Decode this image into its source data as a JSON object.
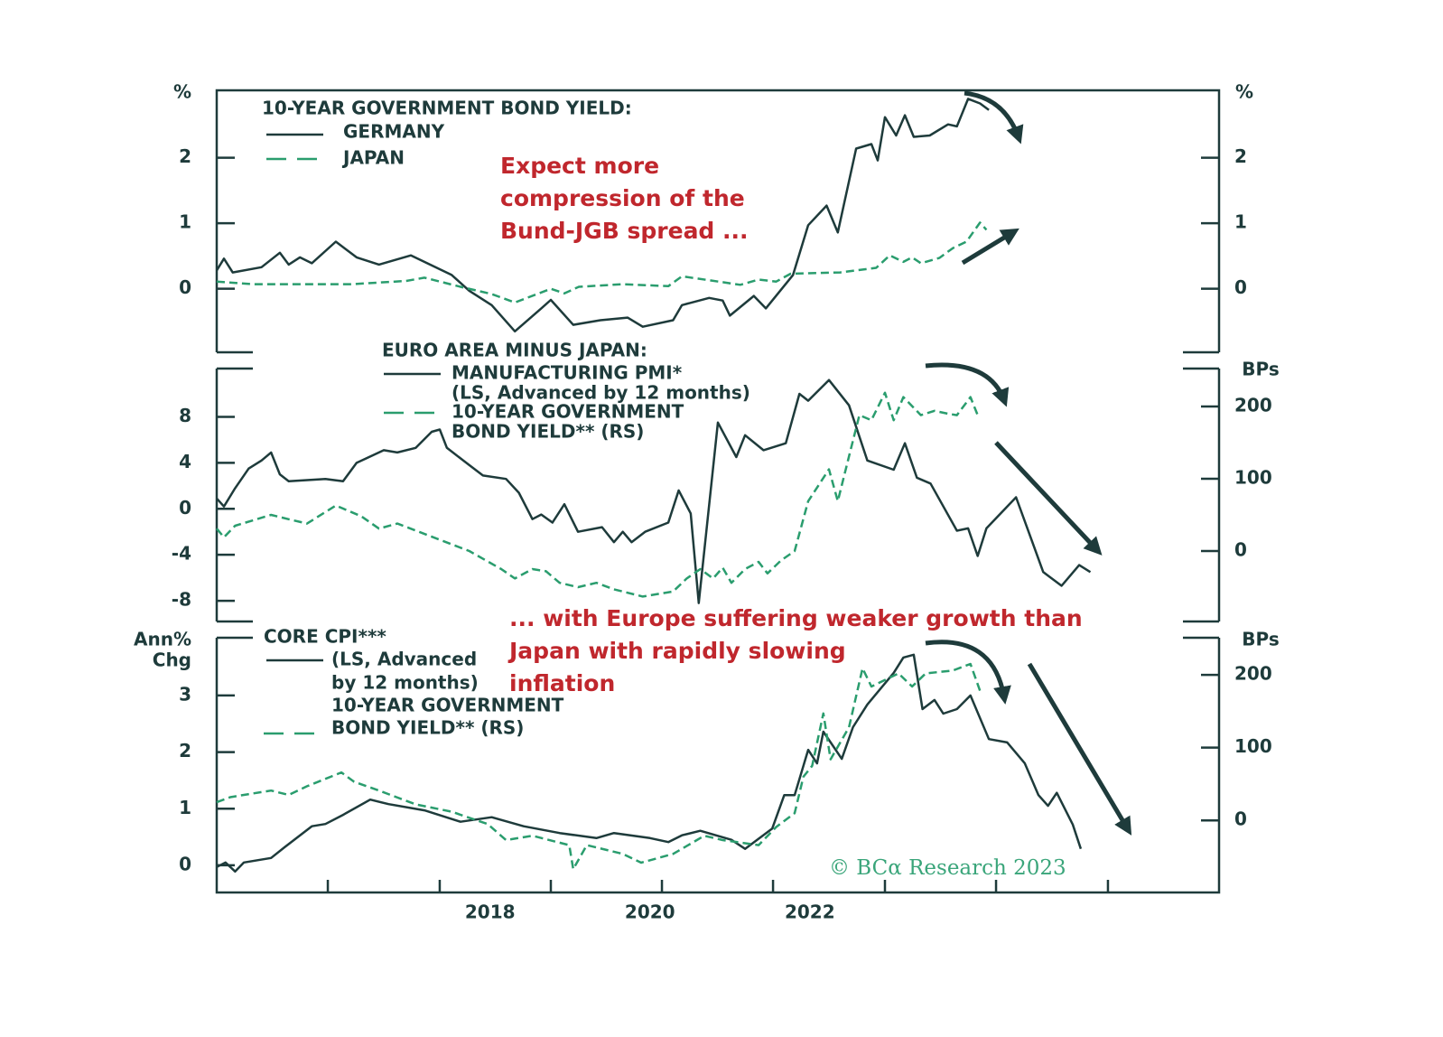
{
  "chart_data": [
    {
      "type": "line",
      "title": "10-YEAR GOVERNMENT BOND YIELD:",
      "ylabel": "%",
      "y2label": "%",
      "ylim": [
        -0.97,
        3.03
      ],
      "yticks": [
        0,
        1,
        2
      ],
      "y2lim": [
        -0.97,
        3.03
      ],
      "y2ticks": [
        0,
        1,
        2
      ],
      "annotation": [
        "Expect more",
        "compression of the",
        "Bund-JGB spread ..."
      ],
      "series": [
        {
          "name": [
            "GERMANY"
          ],
          "color": "#1e3b3b",
          "dash": false,
          "x": [
            2014.58,
            2014.67,
            2014.78,
            2015.14,
            2015.37,
            2015.48,
            2015.62,
            2015.77,
            2016.07,
            2016.33,
            2016.61,
            2017.01,
            2017.52,
            2017.74,
            2018.02,
            2018.31,
            2018.64,
            2018.76,
            2019.04,
            2019.38,
            2019.72,
            2019.91,
            2020.29,
            2020.4,
            2020.74,
            2020.91,
            2021.0,
            2021.3,
            2021.45,
            2021.79,
            2021.98,
            2022.21,
            2022.35,
            2022.58,
            2022.77,
            2022.85,
            2022.94,
            2023.08,
            2023.19,
            2023.3,
            2023.5,
            2023.73,
            2023.84,
            2023.98,
            2024.13,
            2024.24
          ],
          "values": [
            0.28,
            0.46,
            0.25,
            0.33,
            0.55,
            0.37,
            0.48,
            0.39,
            0.72,
            0.48,
            0.37,
            0.51,
            0.21,
            -0.03,
            -0.25,
            -0.65,
            -0.3,
            -0.17,
            -0.55,
            -0.48,
            -0.44,
            -0.58,
            -0.48,
            -0.25,
            -0.14,
            -0.18,
            -0.41,
            -0.11,
            -0.3,
            0.21,
            0.97,
            1.27,
            0.86,
            2.14,
            2.21,
            1.96,
            2.62,
            2.34,
            2.65,
            2.32,
            2.34,
            2.51,
            2.48,
            2.9,
            2.83,
            2.73
          ]
        },
        {
          "name": [
            "JAPAN"
          ],
          "color": "#2a9d6e",
          "dash": true,
          "x": [
            2014.58,
            2015.03,
            2015.6,
            2016.27,
            2016.95,
            2017.18,
            2017.63,
            2018.02,
            2018.31,
            2018.76,
            2018.93,
            2019.11,
            2019.66,
            2020.23,
            2020.4,
            2020.91,
            2021.13,
            2021.36,
            2021.58,
            2021.76,
            2022.38,
            2022.83,
            2023.0,
            2023.17,
            2023.28,
            2023.39,
            2023.62,
            2023.79,
            2023.96,
            2024.13,
            2024.21
          ],
          "values": [
            0.11,
            0.07,
            0.07,
            0.07,
            0.12,
            0.17,
            0.03,
            -0.08,
            -0.21,
            0.0,
            -0.07,
            0.03,
            0.07,
            0.04,
            0.19,
            0.1,
            0.06,
            0.14,
            0.11,
            0.23,
            0.25,
            0.32,
            0.51,
            0.41,
            0.48,
            0.39,
            0.47,
            0.62,
            0.72,
            1.01,
            0.9
          ]
        }
      ]
    },
    {
      "type": "line",
      "title": "EURO AREA MINUS JAPAN:",
      "y2label": "BPs",
      "ylim": [
        -9.8,
        12.2
      ],
      "yticks": [
        8,
        4,
        0,
        -4,
        -8
      ],
      "y2lim": [
        -97.5,
        252.5
      ],
      "y2ticks": [
        200,
        100,
        0
      ],
      "series": [
        {
          "name": [
            "MANUFACTURING PMI*",
            "(LS, Advanced by 12 months)"
          ],
          "color": "#1e3b3b",
          "dash": false,
          "x": [
            2014.58,
            2014.67,
            2014.81,
            2014.98,
            2015.14,
            2015.26,
            2015.37,
            2015.48,
            2015.94,
            2016.16,
            2016.33,
            2016.67,
            2016.84,
            2017.07,
            2017.27,
            2017.37,
            2017.46,
            2017.74,
            2017.91,
            2018.2,
            2018.36,
            2018.53,
            2018.64,
            2018.78,
            2018.93,
            2019.1,
            2019.4,
            2019.55,
            2019.66,
            2019.77,
            2019.94,
            2020.23,
            2020.36,
            2020.51,
            2020.61,
            2020.85,
            2021.08,
            2021.19,
            2021.42,
            2021.7,
            2021.87,
            2021.98,
            2022.24,
            2022.49,
            2022.72,
            2023.05,
            2023.19,
            2023.34,
            2023.51,
            2023.84,
            2023.98,
            2024.1,
            2024.21,
            2024.58,
            2024.92,
            2025.15,
            2025.37,
            2025.51
          ],
          "values": [
            0.9,
            0.2,
            1.8,
            3.5,
            4.2,
            4.9,
            3.0,
            2.4,
            2.6,
            2.4,
            4.0,
            5.1,
            4.9,
            5.3,
            6.7,
            6.9,
            5.3,
            3.8,
            2.9,
            2.6,
            1.4,
            -0.9,
            -0.5,
            -1.2,
            0.4,
            -2.0,
            -1.6,
            -2.9,
            -2.0,
            -2.9,
            -2.0,
            -1.2,
            1.6,
            -0.4,
            -8.2,
            7.5,
            4.5,
            6.4,
            5.1,
            5.7,
            10.0,
            9.4,
            11.2,
            9.0,
            4.2,
            3.4,
            5.7,
            2.7,
            2.2,
            -1.9,
            -1.7,
            -4.1,
            -1.7,
            1.0,
            -5.5,
            -6.7,
            -4.9,
            -5.5
          ]
        },
        {
          "name": [
            "10-YEAR GOVERNMENT",
            "BOND YIELD** (RS)"
          ],
          "color": "#2a9d6e",
          "dash": true,
          "axis": "y2",
          "x": [
            2014.58,
            2014.67,
            2014.81,
            2015.26,
            2015.48,
            2015.71,
            2016.07,
            2016.39,
            2016.61,
            2016.84,
            2017.29,
            2017.74,
            2018.14,
            2018.31,
            2018.53,
            2018.7,
            2018.87,
            2019.1,
            2019.33,
            2019.55,
            2019.91,
            2020.29,
            2020.46,
            2020.63,
            2020.79,
            2020.91,
            2021.02,
            2021.19,
            2021.36,
            2021.47,
            2021.64,
            2021.81,
            2021.98,
            2022.24,
            2022.35,
            2022.49,
            2022.62,
            2022.77,
            2022.94,
            2023.05,
            2023.17,
            2023.39,
            2023.56,
            2023.73,
            2023.84,
            2024.01,
            2024.1
          ],
          "values": [
            31,
            19,
            35,
            50,
            44,
            38,
            63,
            48,
            31,
            38,
            19,
            0,
            -25,
            -38,
            -25,
            -28,
            -44,
            -50,
            -44,
            -53,
            -63,
            -56,
            -38,
            -25,
            -38,
            -23,
            -44,
            -25,
            -15,
            -31,
            -13,
            0,
            69,
            113,
            69,
            131,
            188,
            181,
            219,
            181,
            213,
            188,
            194,
            190,
            188,
            213,
            188
          ]
        }
      ]
    },
    {
      "type": "line",
      "ylabel": [
        "Ann%",
        "Chg"
      ],
      "y2label": "BPs",
      "ylim": [
        -0.48,
        4.02
      ],
      "yticks": [
        0,
        1,
        2,
        3
      ],
      "y2lim": [
        -99,
        251
      ],
      "y2ticks": [
        200,
        100,
        0
      ],
      "xlim": [
        2014.58,
        2027.12
      ],
      "xticks": [
        2018,
        2020,
        2022
      ],
      "xtick_marks": [
        2015.97,
        2017.37,
        2018.76,
        2020.15,
        2021.54,
        2022.94,
        2024.33,
        2025.73
      ],
      "annotation": [
        "... with Europe suffering weaker growth than",
        "Japan with rapidly slowing",
        "inflation"
      ],
      "series": [
        {
          "name": [
            "CORE CPI***",
            "(LS, Advanced",
            "by 12 months)"
          ],
          "color": "#1e3b3b",
          "dash": false,
          "x": [
            2014.58,
            2014.69,
            2014.81,
            2014.92,
            2015.26,
            2015.43,
            2015.77,
            2015.94,
            2016.16,
            2016.5,
            2016.73,
            2017.18,
            2017.63,
            2018.02,
            2018.42,
            2018.87,
            2019.33,
            2019.55,
            2020.0,
            2020.23,
            2020.4,
            2020.63,
            2021.02,
            2021.19,
            2021.53,
            2021.68,
            2021.81,
            2021.98,
            2022.09,
            2022.17,
            2022.4,
            2022.54,
            2022.72,
            2023.05,
            2023.17,
            2023.3,
            2023.41,
            2023.56,
            2023.67,
            2023.84,
            2024.01,
            2024.24,
            2024.47,
            2024.69,
            2024.86,
            2024.98,
            2025.09,
            2025.29,
            2025.39
          ],
          "values": [
            -0.03,
            0.05,
            -0.11,
            0.05,
            0.13,
            0.32,
            0.69,
            0.73,
            0.89,
            1.16,
            1.08,
            0.97,
            0.77,
            0.85,
            0.69,
            0.57,
            0.48,
            0.57,
            0.48,
            0.41,
            0.53,
            0.61,
            0.45,
            0.29,
            0.65,
            1.24,
            1.24,
            2.04,
            1.8,
            2.36,
            1.88,
            2.44,
            2.84,
            3.4,
            3.67,
            3.72,
            2.76,
            2.92,
            2.68,
            2.76,
            3.0,
            2.23,
            2.17,
            1.8,
            1.24,
            1.05,
            1.28,
            0.72,
            0.29
          ]
        },
        {
          "name": [
            "10-YEAR GOVERNMENT",
            "BOND YIELD** (RS)"
          ],
          "color": "#2a9d6e",
          "dash": true,
          "axis": "y2",
          "x": [
            2014.58,
            2014.75,
            2014.92,
            2015.26,
            2015.48,
            2015.71,
            2016.14,
            2016.3,
            2016.61,
            2017.07,
            2017.52,
            2017.97,
            2018.2,
            2018.53,
            2018.99,
            2019.04,
            2019.21,
            2019.66,
            2019.89,
            2020.29,
            2020.68,
            2020.91,
            2021.36,
            2021.58,
            2021.81,
            2021.92,
            2022.03,
            2022.17,
            2022.26,
            2022.49,
            2022.66,
            2022.77,
            2023.11,
            2023.28,
            2023.45,
            2023.79,
            2024.01,
            2024.13
          ],
          "values": [
            25,
            32,
            35,
            41,
            35,
            47,
            66,
            53,
            41,
            22,
            12,
            -5,
            -27,
            -21,
            -34,
            -67,
            -34,
            -46,
            -58,
            -46,
            -21,
            -27,
            -34,
            -9,
            10,
            60,
            75,
            147,
            84,
            128,
            209,
            184,
            202,
            184,
            202,
            206,
            215,
            178
          ]
        }
      ]
    }
  ],
  "source": "© BCα Research 2023"
}
